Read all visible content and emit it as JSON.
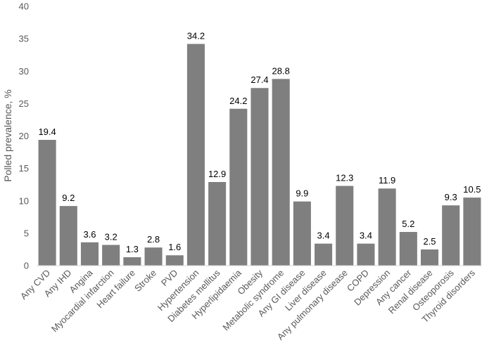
{
  "chart_data": {
    "type": "bar",
    "ylabel": "Polled prevalence, %",
    "ylim": [
      0,
      40
    ],
    "yticks": [
      0,
      5,
      10,
      15,
      20,
      25,
      30,
      35,
      40
    ],
    "grid": false,
    "bar_color": "#7f7f7f",
    "categories": [
      "Any CVD",
      "Any IHD",
      "Angina",
      "Myocardial infarction",
      "Heart failure",
      "Stroke",
      "PVD",
      "Hypertension",
      "Diabetes mellitus",
      "Hyperlipidaemia",
      "Obesity",
      "Metabolic syndrome",
      "Any GI disease",
      "Liver disease",
      "Any pulmonary disease",
      "COPD",
      "Depression",
      "Any cancer",
      "Renal disease",
      "Osteoporosis",
      "Thyroid disorders"
    ],
    "values": [
      19.4,
      9.2,
      3.6,
      3.2,
      1.3,
      2.8,
      1.6,
      34.2,
      12.9,
      24.2,
      27.4,
      28.8,
      9.9,
      3.4,
      12.3,
      3.4,
      11.9,
      5.2,
      2.5,
      9.3,
      10.5
    ],
    "value_labels": [
      "19.4",
      "9.2",
      "3.6",
      "3.2",
      "1.3",
      "2.8",
      "1.6",
      "34.2",
      "12.9",
      "24.2",
      "27.4",
      "28.8",
      "9.9",
      "3.4",
      "12.3",
      "3.4",
      "11.9",
      "5.2",
      "2.5",
      "9.3",
      "10.5"
    ]
  }
}
